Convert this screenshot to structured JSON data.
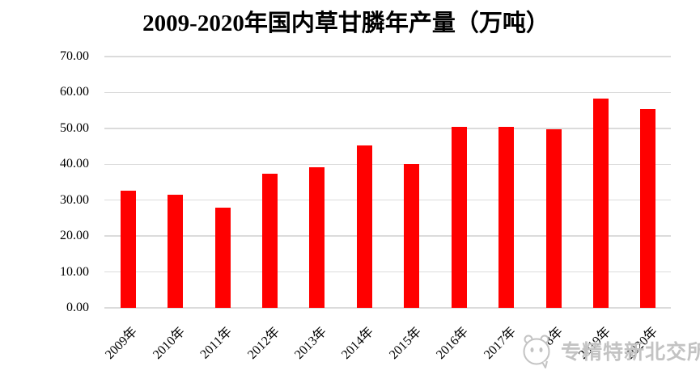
{
  "chart_data": {
    "type": "bar",
    "title": "2009-2020年国内草甘膦年产量（万吨）",
    "categories": [
      "2009年",
      "2010年",
      "2011年",
      "2012年",
      "2013年",
      "2014年",
      "2015年",
      "2016年",
      "2017年",
      "2018年",
      "2019年",
      "2020年"
    ],
    "values": [
      32.7,
      31.6,
      28.0,
      37.3,
      39.2,
      45.2,
      40.1,
      50.4,
      50.4,
      49.8,
      58.3,
      55.3
    ],
    "xlabel": "",
    "ylabel": "",
    "ylim": [
      0,
      70
    ],
    "ytick_step": 10,
    "ytick_decimals": 2,
    "legend": "none",
    "grid": "horizontal",
    "bar_color": "#FF0000",
    "gridline_color": "#DBDBDB",
    "text_color": "#000000"
  },
  "watermark": {
    "text": "专精特新北交所",
    "icon": "mascot-face-icon",
    "color": "#C3C3C3"
  }
}
